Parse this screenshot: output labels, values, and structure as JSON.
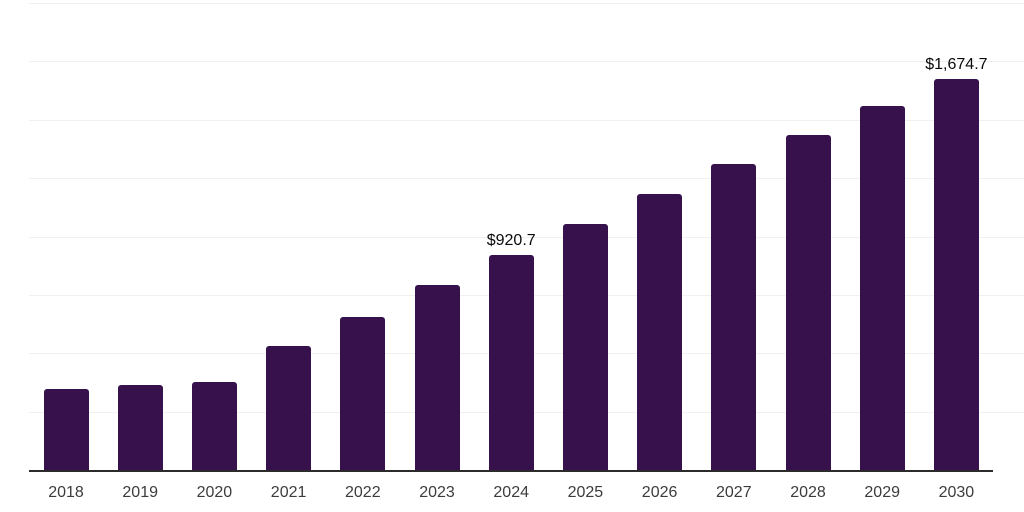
{
  "chart_data": {
    "type": "bar",
    "title": "",
    "xlabel": "",
    "ylabel": "",
    "categories": [
      "2018",
      "2019",
      "2020",
      "2021",
      "2022",
      "2023",
      "2024",
      "2025",
      "2026",
      "2027",
      "2028",
      "2029",
      "2030"
    ],
    "values": [
      349,
      365,
      379,
      530,
      654,
      793,
      920.7,
      1055,
      1182,
      1312,
      1437,
      1561,
      1674.7
    ],
    "data_labels": {
      "2024": "$920.7",
      "2030": "$1,674.7"
    },
    "ylim": [
      0,
      2000
    ],
    "grid_step": 250,
    "grid": "horizontal-only",
    "legend": "none",
    "colors": {
      "bar": "#36114C",
      "axis": "#2B2B2B",
      "gridline": "#F0F0F0",
      "tick_label": "#3C3C3C",
      "data_label": "#0A0A0A",
      "background": "#FFFFFF"
    }
  }
}
